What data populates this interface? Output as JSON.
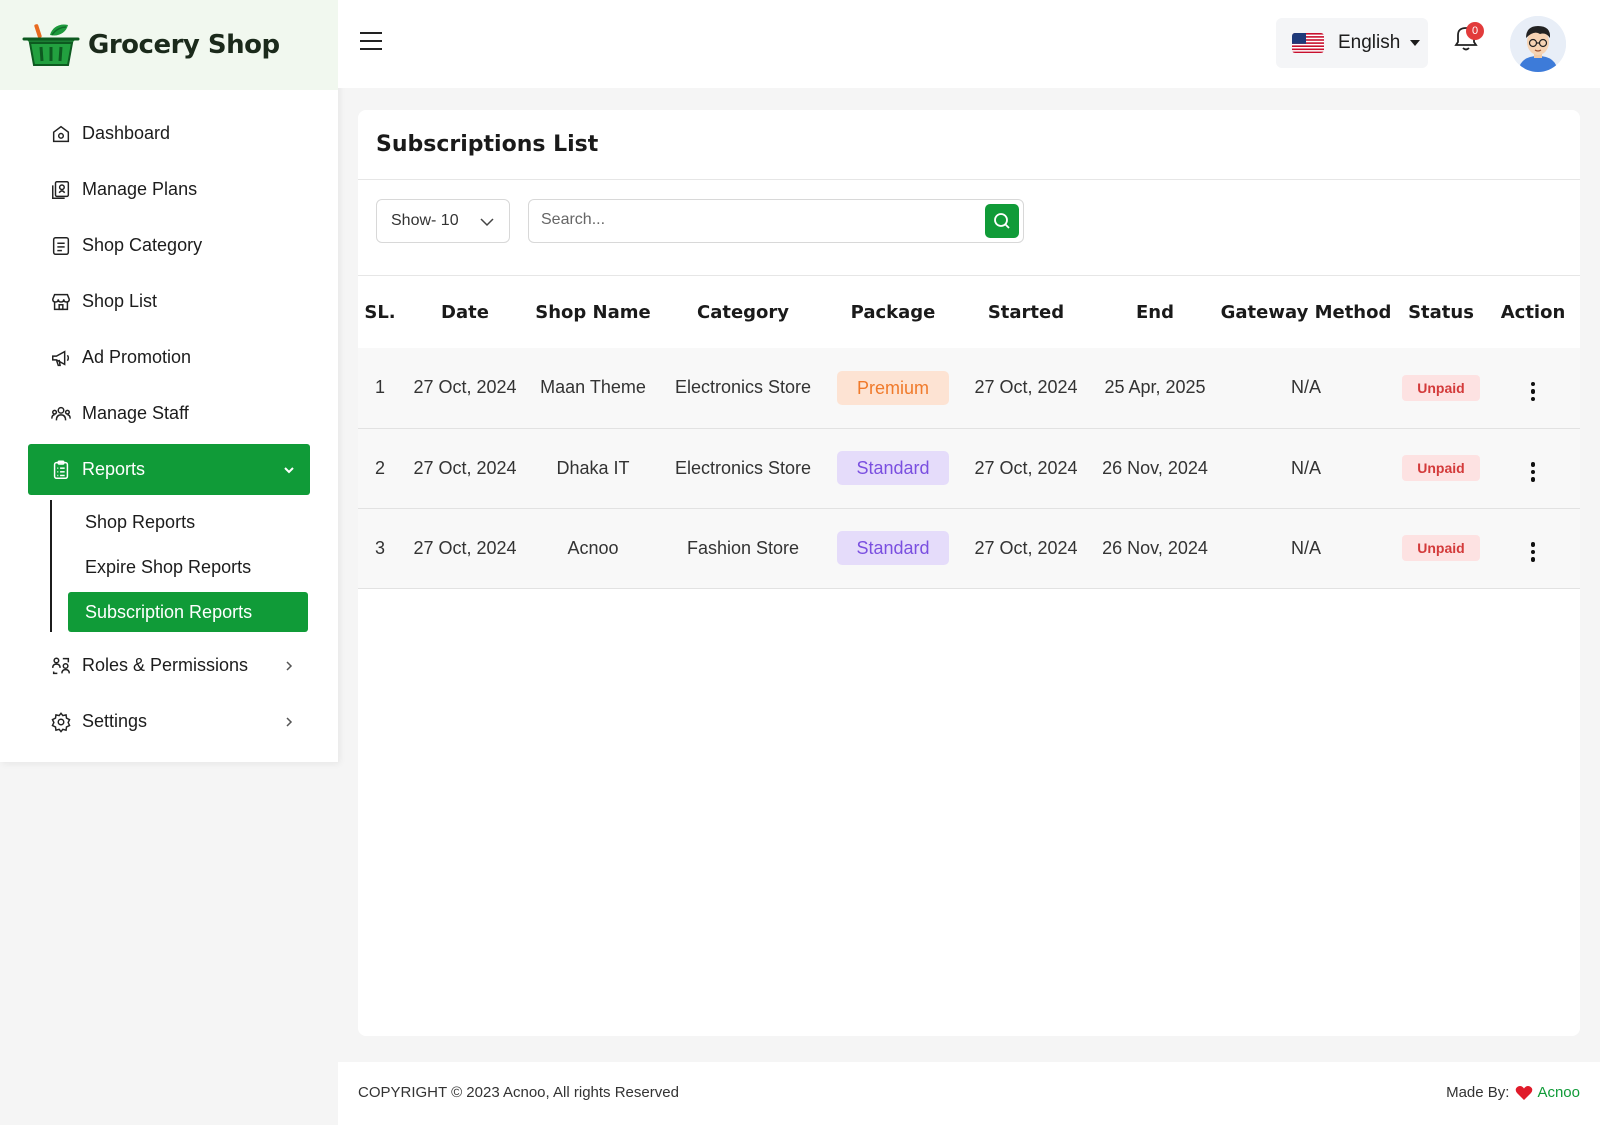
{
  "brand": {
    "name": "Grocery Shop"
  },
  "sidebar": {
    "items": [
      {
        "label": "Dashboard",
        "icon": "home-icon"
      },
      {
        "label": "Manage Plans",
        "icon": "plans-icon"
      },
      {
        "label": "Shop Category",
        "icon": "category-icon"
      },
      {
        "label": "Shop List",
        "icon": "store-icon"
      },
      {
        "label": "Ad Promotion",
        "icon": "megaphone-icon"
      },
      {
        "label": "Manage Staff",
        "icon": "staff-icon"
      },
      {
        "label": "Reports",
        "icon": "clipboard-icon",
        "expanded": true
      },
      {
        "label": "Roles & Permissions",
        "icon": "roles-icon"
      },
      {
        "label": "Settings",
        "icon": "gear-icon"
      }
    ],
    "reports_sub": [
      {
        "label": "Shop Reports"
      },
      {
        "label": "Expire Shop Reports"
      },
      {
        "label": "Subscription Reports",
        "active": true
      }
    ]
  },
  "topbar": {
    "language": "English",
    "notification_count": "0"
  },
  "main": {
    "title": "Subscriptions List",
    "show_select": "Show- 10",
    "search_placeholder": "Search...",
    "columns": [
      "SL.",
      "Date",
      "Shop Name",
      "Category",
      "Package",
      "Started",
      "End",
      "Gateway Method",
      "Status",
      "Action"
    ],
    "rows": [
      {
        "sl": "1",
        "date": "27 Oct, 2024",
        "shop": "Maan Theme",
        "category": "Electronics Store",
        "package": "Premium",
        "started": "27 Oct, 2024",
        "end": "25 Apr, 2025",
        "gateway": "N/A",
        "status": "Unpaid"
      },
      {
        "sl": "2",
        "date": "27 Oct, 2024",
        "shop": "Dhaka IT",
        "category": "Electronics Store",
        "package": "Standard",
        "started": "27 Oct, 2024",
        "end": "26 Nov, 2024",
        "gateway": "N/A",
        "status": "Unpaid"
      },
      {
        "sl": "3",
        "date": "27 Oct, 2024",
        "shop": "Acnoo",
        "category": "Fashion Store",
        "package": "Standard",
        "started": "27 Oct, 2024",
        "end": "26 Nov, 2024",
        "gateway": "N/A",
        "status": "Unpaid"
      }
    ]
  },
  "footer": {
    "copyright": "COPYRIGHT © 2023 Acnoo, All rights Reserved",
    "made_by": "Made By:",
    "made_by_brand": "Acnoo"
  },
  "colors": {
    "accent": "#109b38",
    "premium_bg": "#fde3d3",
    "premium_text": "#f07a2b",
    "standard_bg": "#e5dcfa",
    "standard_text": "#7a4fe0",
    "unpaid_bg": "#fde2e2",
    "unpaid_text": "#d33a3a"
  }
}
